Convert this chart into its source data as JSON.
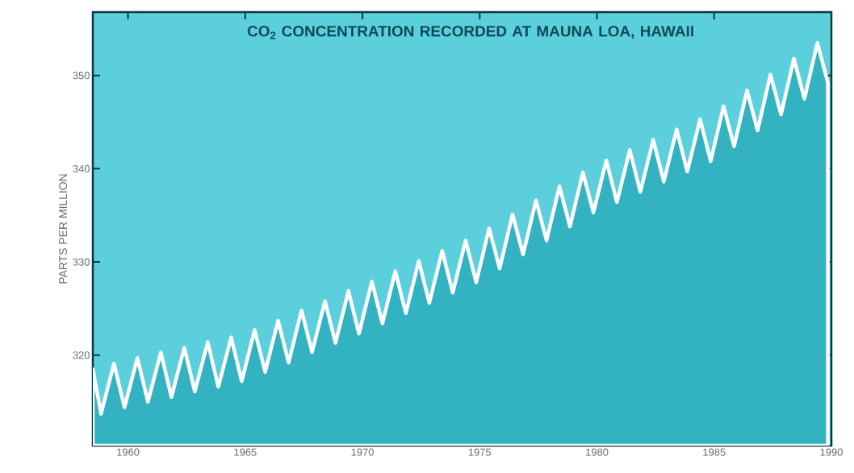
{
  "chart_data": {
    "type": "area",
    "title": "CO$_{2}$ CONCENTRATION RECORDED AT MAUNA LOA, HAWAII",
    "ylabel": "PARTS PER MILLION",
    "x": [
      1958.5,
      1958.85,
      1959.4,
      1959.85,
      1960.4,
      1960.85,
      1961.4,
      1961.85,
      1962.4,
      1962.85,
      1963.4,
      1963.85,
      1964.4,
      1964.85,
      1965.4,
      1965.85,
      1966.4,
      1966.85,
      1967.4,
      1967.85,
      1968.4,
      1968.85,
      1969.4,
      1969.85,
      1970.4,
      1970.85,
      1971.4,
      1971.85,
      1972.4,
      1972.85,
      1973.4,
      1973.85,
      1974.4,
      1974.85,
      1975.4,
      1975.85,
      1976.4,
      1976.85,
      1977.4,
      1977.85,
      1978.4,
      1978.85,
      1979.4,
      1979.85,
      1980.4,
      1980.85,
      1981.4,
      1981.85,
      1982.4,
      1982.85,
      1983.4,
      1983.85,
      1984.4,
      1984.85,
      1985.4,
      1985.85,
      1986.4,
      1986.85,
      1987.4,
      1987.85,
      1988.4,
      1988.85,
      1989.4,
      1989.85
    ],
    "series": [
      {
        "color": "#33b2c2",
        "values": [
          318.5,
          313.7,
          319.1,
          314.4,
          319.7,
          315.0,
          320.3,
          315.5,
          320.8,
          316.1,
          321.4,
          316.6,
          321.9,
          317.2,
          322.7,
          318.2,
          323.7,
          319.2,
          324.8,
          320.3,
          325.8,
          321.3,
          326.9,
          322.3,
          327.9,
          323.4,
          329.0,
          324.5,
          330.1,
          325.6,
          331.2,
          326.7,
          332.3,
          327.8,
          333.6,
          329.3,
          335.1,
          330.8,
          336.6,
          332.3,
          338.1,
          333.8,
          339.6,
          335.3,
          340.9,
          336.4,
          342.0,
          337.5,
          343.1,
          338.6,
          344.2,
          339.7,
          345.3,
          340.8,
          346.7,
          342.4,
          348.4,
          344.1,
          350.1,
          345.8,
          351.8,
          347.5,
          353.5,
          349.2
        ]
      }
    ],
    "xlim": [
      1958.5,
      1990
    ],
    "ylim": [
      310.3,
      356.8
    ],
    "xticks": [
      1960,
      1965,
      1970,
      1975,
      1980,
      1985,
      1990
    ],
    "yticks": [
      320,
      330,
      340,
      350
    ]
  }
}
